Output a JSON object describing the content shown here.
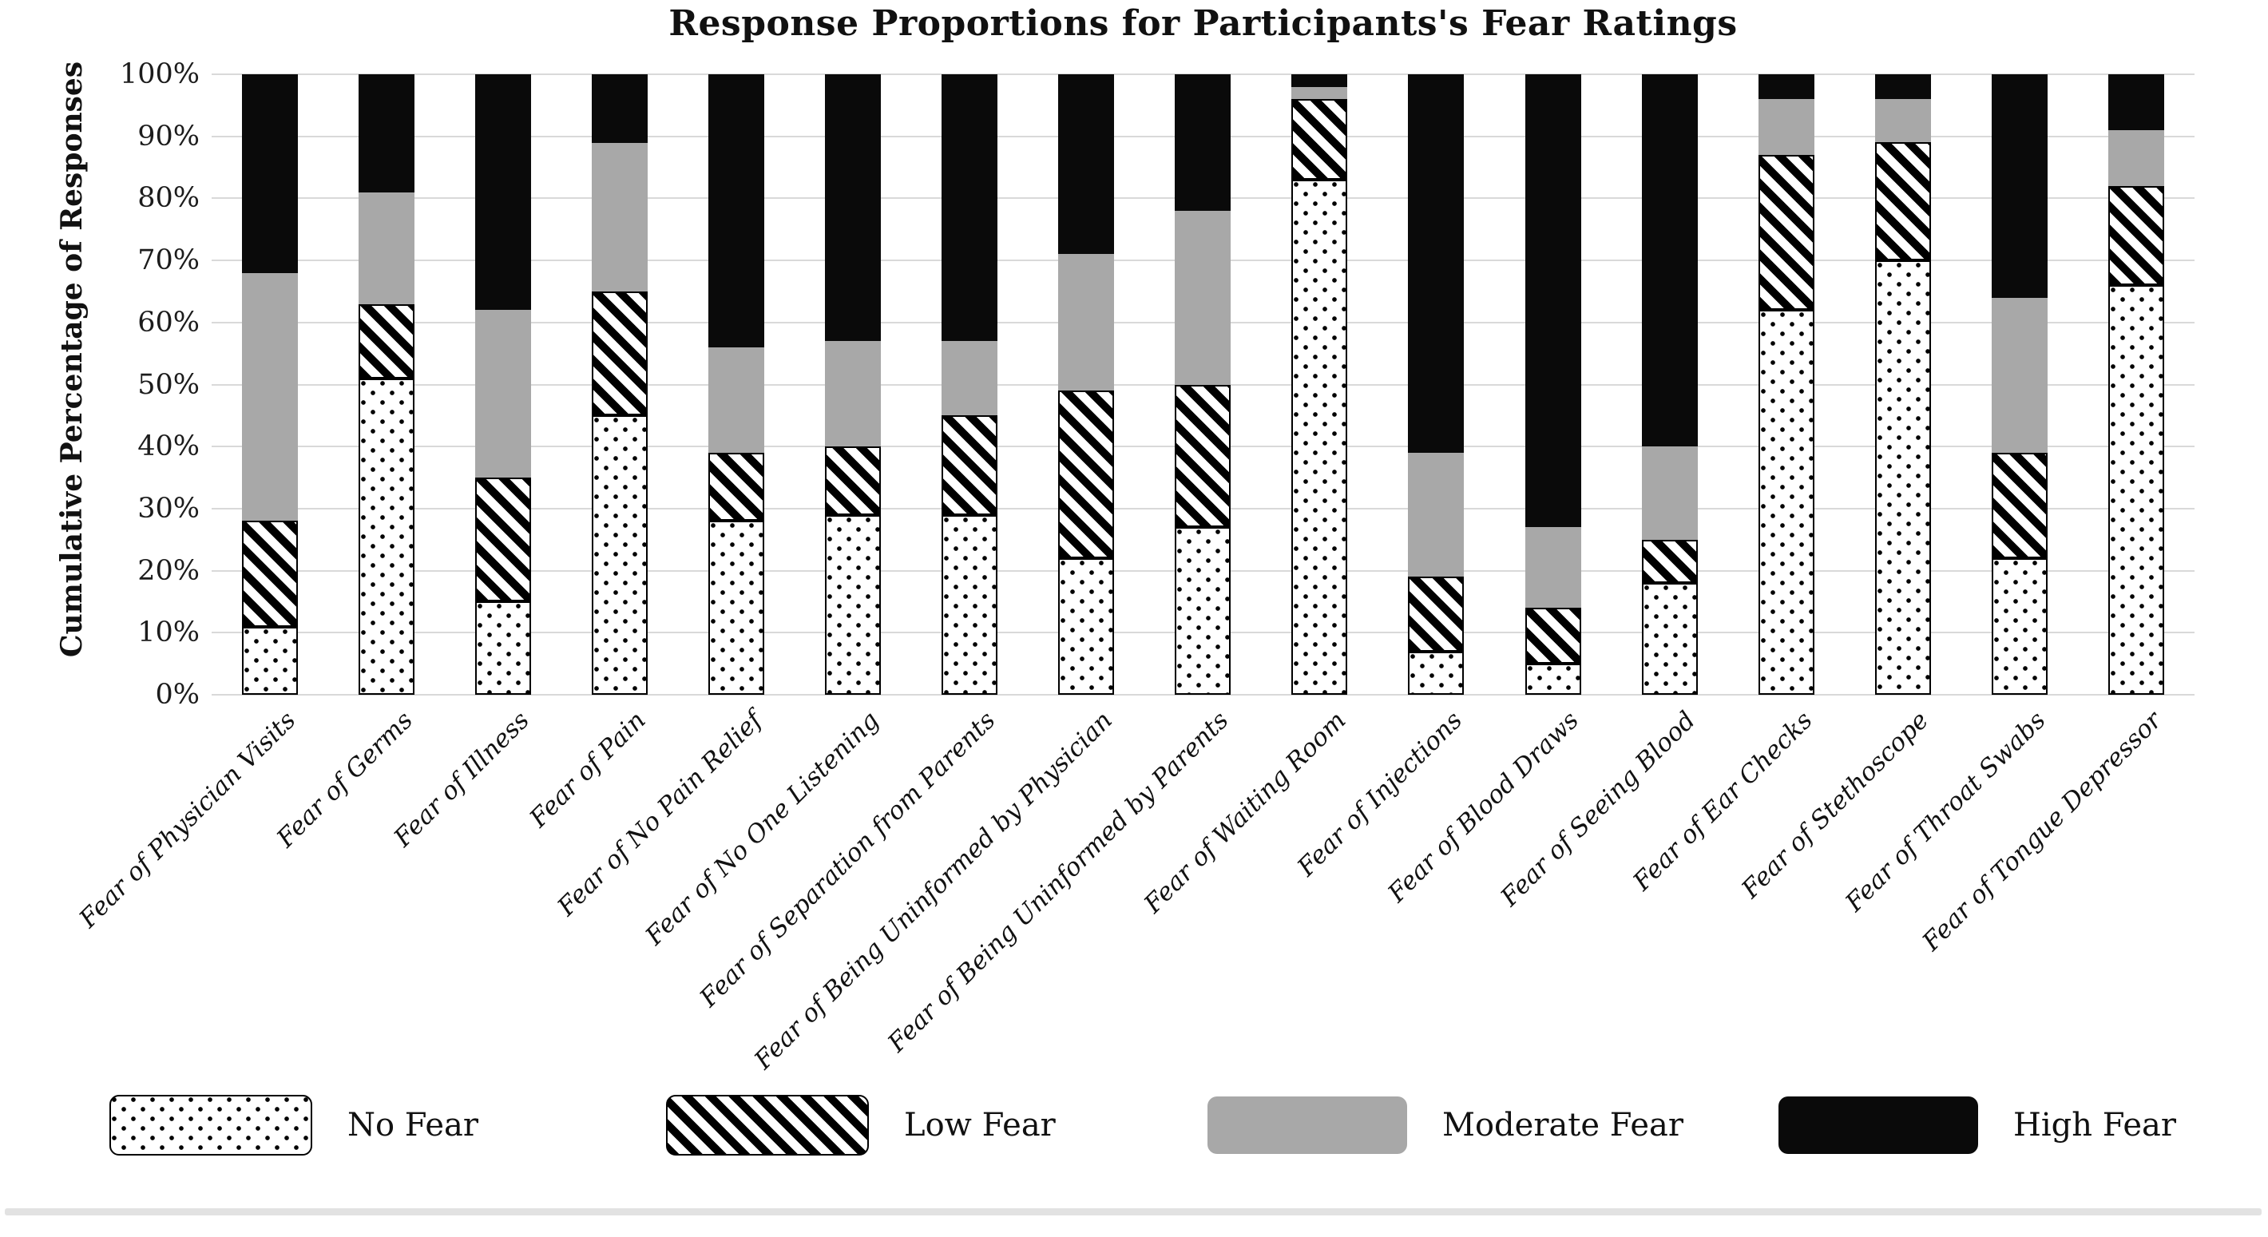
{
  "chart_data": {
    "type": "bar",
    "stacked": true,
    "percent_stacked": true,
    "title": "Response Proportions for Participants's Fear Ratings",
    "y_axis_title": "Cumulative Percentage of Responses",
    "xlabel": "",
    "ylabel": "Cumulative Percentage of Responses",
    "ylim": [
      0,
      100
    ],
    "grid": true,
    "legend_position": "bottom",
    "y_ticks": [
      "100%",
      "90%",
      "80%",
      "70%",
      "60%",
      "50%",
      "40%",
      "30%",
      "20%",
      "10%",
      "0%"
    ],
    "categories": [
      "Fear of Physician Visits",
      "Fear of Germs",
      "Fear of Illness",
      "Fear of Pain",
      "Fear of No Pain Relief",
      "Fear of No One Listening",
      "Fear of Separation from Parents",
      "Fear of Being Uninformed by Physician",
      "Fear of Being Uninformed by Parents",
      "Fear of Waiting Room",
      "Fear of Injections",
      "Fear of Blood Draws",
      "Fear of Seeing Blood",
      "Fear of Ear Checks",
      "Fear of Stethoscope",
      "Fear of Throat Swabs",
      "Fear of Tongue Depressor"
    ],
    "series": [
      {
        "name": "No Fear",
        "pattern": "dots",
        "fill": "#ffffff",
        "values": [
          11,
          51,
          15,
          45,
          28,
          29,
          29,
          22,
          27,
          83,
          7,
          5,
          18,
          62,
          70,
          22,
          66
        ]
      },
      {
        "name": "Low Fear",
        "pattern": "diagonal-stripes",
        "fill": "#000000",
        "values": [
          17,
          12,
          20,
          20,
          11,
          11,
          16,
          27,
          23,
          13,
          12,
          9,
          7,
          25,
          19,
          17,
          16
        ]
      },
      {
        "name": "Moderate Fear",
        "pattern": "solid",
        "fill": "#a8a8a8",
        "values": [
          40,
          18,
          27,
          24,
          17,
          17,
          12,
          22,
          28,
          2,
          20,
          13,
          15,
          9,
          7,
          25,
          9
        ]
      },
      {
        "name": "High Fear",
        "pattern": "solid",
        "fill": "#0a0a0a",
        "values": [
          32,
          19,
          38,
          11,
          44,
          43,
          43,
          29,
          22,
          2,
          61,
          73,
          60,
          4,
          4,
          36,
          9
        ]
      }
    ],
    "colors": {
      "gridline": "#d9d9d9",
      "moderate_fear_gray": "#a8a8a8",
      "high_fear_black": "#0a0a0a",
      "background": "#ffffff"
    }
  },
  "legend": {
    "items": [
      "No Fear",
      "Low Fear",
      "Moderate Fear",
      "High Fear"
    ]
  }
}
